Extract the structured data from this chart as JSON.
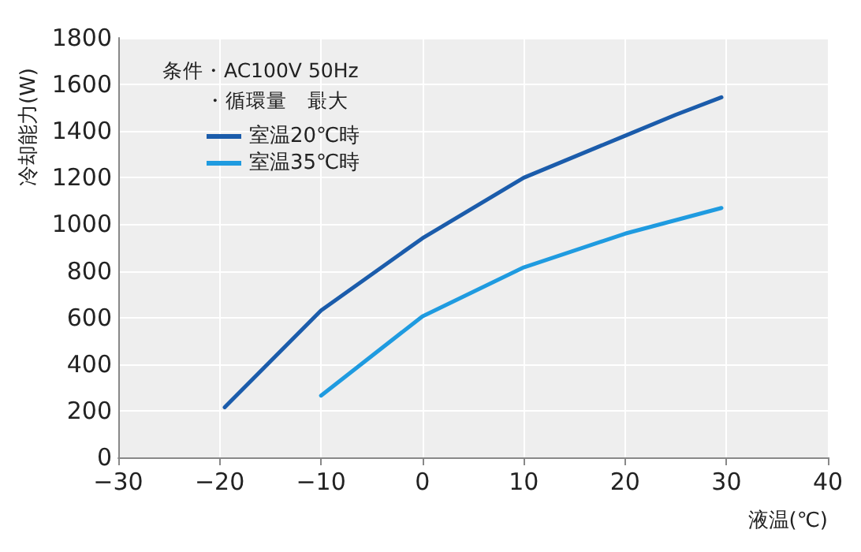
{
  "chart_data": {
    "type": "line",
    "xlabel": "液温(℃)",
    "ylabel": "冷却能力(W)",
    "annotations": [
      "条件・AC100V 50Hz",
      "・循環量　最大"
    ],
    "series": [
      {
        "name": "室温20℃時",
        "color": "#1b5cab",
        "x": [
          -19.5,
          -10,
          0,
          10,
          20,
          25,
          29.5
        ],
        "values": [
          215,
          630,
          940,
          1200,
          1380,
          1470,
          1545
        ]
      },
      {
        "name": "室温35℃時",
        "color": "#1f9be0",
        "x": [
          -10,
          0,
          10,
          20,
          29.5
        ],
        "values": [
          265,
          605,
          815,
          960,
          1070
        ]
      }
    ],
    "xlim": [
      -30,
      40
    ],
    "xticks": [
      -30,
      -20,
      -10,
      0,
      10,
      20,
      30,
      40
    ],
    "ylim": [
      0,
      1800
    ],
    "yticks": [
      0,
      200,
      400,
      600,
      800,
      1000,
      1200,
      1400,
      1600,
      1800
    ],
    "grid": true,
    "legend": "top left",
    "marker": "none",
    "line_style": "solid"
  }
}
